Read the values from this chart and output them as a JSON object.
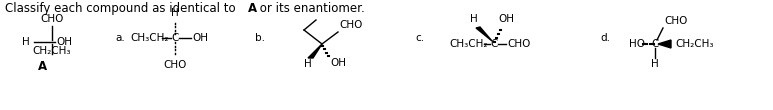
{
  "title": "Classify each compound as identical to ",
  "title_bold": "A",
  "title_end": " or its enantiomer.",
  "bg_color": "#ffffff",
  "fig_width": 7.73,
  "fig_height": 1.1,
  "dpi": 100,
  "fs": 7.5,
  "fs_title": 8.5
}
